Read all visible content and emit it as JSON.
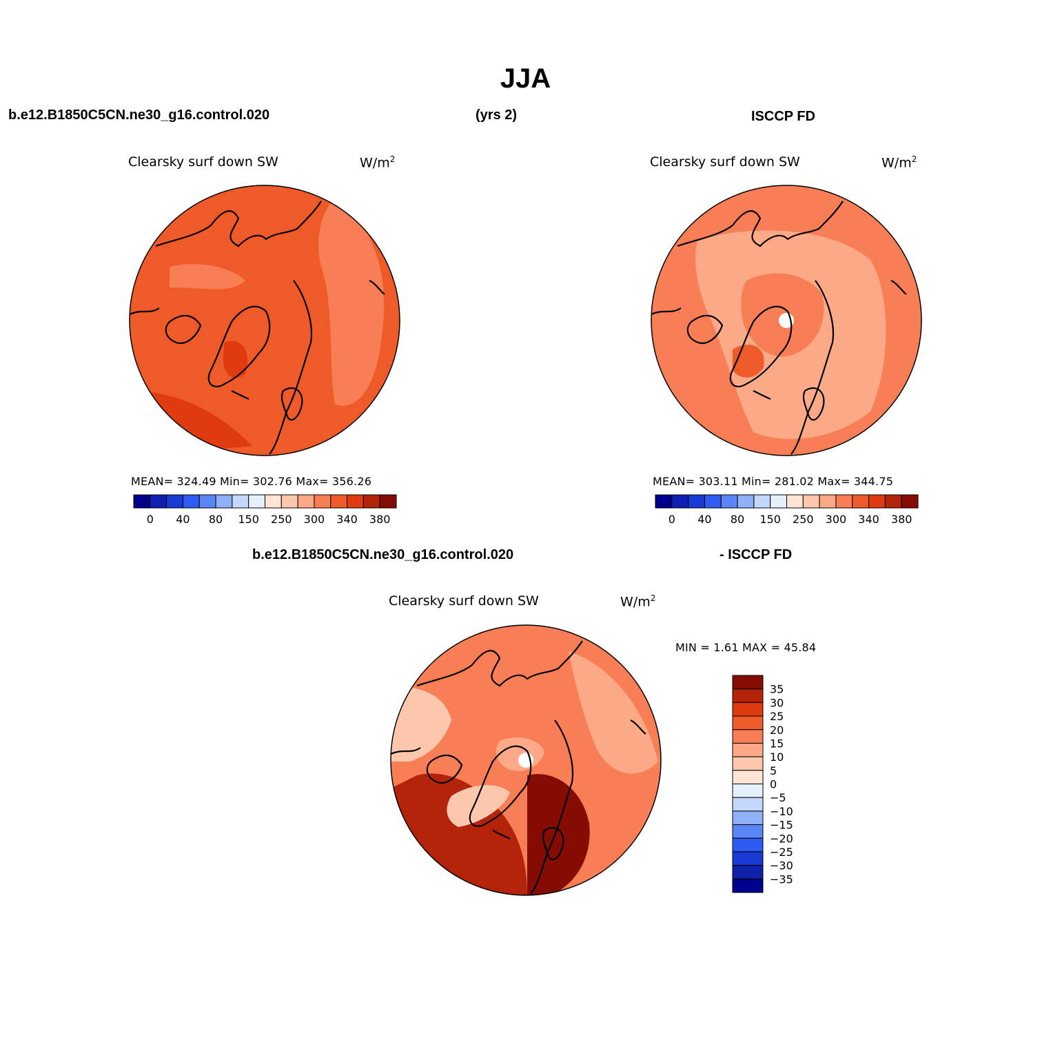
{
  "main_title": "JJA",
  "header": {
    "case_name": "b.e12.B1850C5CN.ne30_g16.control.020",
    "years": "(yrs 2)",
    "obs_name": "ISCCP FD",
    "diff_case_name": "b.e12.B1850C5CN.ne30_g16.control.020",
    "diff_obs_name": "- ISCCP FD"
  },
  "panels": {
    "model": {
      "title": "Clearsky surf down SW",
      "units": "W/m",
      "units_sup": "2",
      "stats": "MEAN= 324.49   Min= 302.76   Max= 356.26"
    },
    "obs": {
      "title": "Clearsky surf down SW",
      "units": "W/m",
      "units_sup": "2",
      "stats": "MEAN= 303.11   Min= 281.02   Max= 344.75"
    },
    "diff": {
      "title": "Clearsky surf down SW",
      "units": "W/m",
      "units_sup": "2",
      "minmax": "MIN =    1.61  MAX =   45.84"
    }
  },
  "abs_colorbar": {
    "colors": [
      "#00008c",
      "#0f1fb3",
      "#1a3ad6",
      "#2e5cf2",
      "#5a86f5",
      "#8fb0f7",
      "#c4d8fb",
      "#e6f0fc",
      "#fde4d5",
      "#fcc8ad",
      "#fba987",
      "#f77e55",
      "#ef5a29",
      "#df3b0f",
      "#b22309",
      "#850c02"
    ],
    "tick_labels": [
      "0",
      "40",
      "80",
      "150",
      "250",
      "300",
      "340",
      "380"
    ]
  },
  "diff_colorbar": {
    "colors": [
      "#00008c",
      "#0d22a6",
      "#1a3ad6",
      "#2e5cf2",
      "#5a86f5",
      "#8fb0f7",
      "#c4d8fb",
      "#e6f0fc",
      "#fde4d5",
      "#fcc8ad",
      "#fba987",
      "#f77e55",
      "#ef5a29",
      "#df3b0f",
      "#b22309",
      "#850c02"
    ],
    "tick_labels": [
      "35",
      "30",
      "25",
      "20",
      "15",
      "10",
      "5",
      "0",
      "−5",
      "−10",
      "−15",
      "−20",
      "−25",
      "−30",
      "−35"
    ]
  },
  "map_fill": {
    "model_base": "#ef5a29",
    "model_light": "#f77e55",
    "model_dark": "#df3b0f",
    "obs_base": "#f77e55",
    "obs_light": "#fba987",
    "obs_mid": "#ef5a29",
    "diff_base": "#f77e55",
    "diff_light": "#fba987",
    "diff_pale": "#fcc8ad",
    "diff_dark": "#df3b0f",
    "diff_darker": "#b22309",
    "diff_darkest": "#850c02"
  }
}
